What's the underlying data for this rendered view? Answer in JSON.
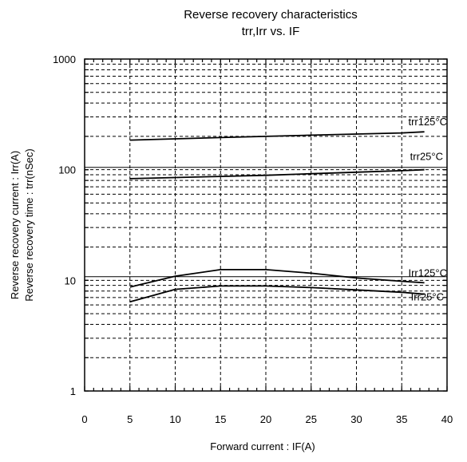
{
  "chart_data": {
    "type": "line",
    "title": "Reverse recovery characteristics",
    "subtitle": "trr,Irr vs. IF",
    "xlabel": "Forward current : IF(A)",
    "ylabel_line1": "Reverse recovery current : Irr(A)",
    "ylabel_line2": "Reverse recovery time : trr(nSec)",
    "x_scale": "linear",
    "y_scale": "log",
    "xlim": [
      0,
      40
    ],
    "ylim": [
      1,
      1000
    ],
    "x_ticks": [
      0,
      5,
      10,
      15,
      20,
      25,
      30,
      35,
      40
    ],
    "x_tick_labels": [
      "0",
      "5",
      "10",
      "15",
      "20",
      "25",
      "30",
      "35",
      "40"
    ],
    "y_ticks": [
      1,
      10,
      100,
      1000
    ],
    "y_tick_labels": [
      "1",
      "10",
      "100",
      "1000"
    ],
    "grid": true,
    "series": [
      {
        "name": "trr125°C",
        "x": [
          5,
          10,
          15,
          20,
          25,
          30,
          35,
          37.5
        ],
        "y": [
          185,
          190,
          195,
          200,
          205,
          210,
          215,
          220
        ]
      },
      {
        "name": "trr25°C",
        "x": [
          5,
          10,
          15,
          20,
          25,
          30,
          35,
          37.5
        ],
        "y": [
          83,
          85,
          87,
          89,
          92,
          95,
          98,
          100
        ]
      },
      {
        "name": "Irr125°C",
        "x": [
          5,
          10,
          15,
          20,
          25,
          30,
          35,
          37.5
        ],
        "y": [
          8.7,
          10.9,
          12.5,
          12.5,
          11.6,
          10.5,
          9.8,
          9.5
        ]
      },
      {
        "name": "Irr25°C",
        "x": [
          5,
          10,
          15,
          20,
          25,
          30,
          35,
          37.5
        ],
        "y": [
          6.4,
          8.3,
          8.9,
          8.9,
          8.6,
          8.2,
          7.8,
          7.5
        ]
      }
    ],
    "reference_lines_y": [
      105,
      10.8
    ]
  }
}
